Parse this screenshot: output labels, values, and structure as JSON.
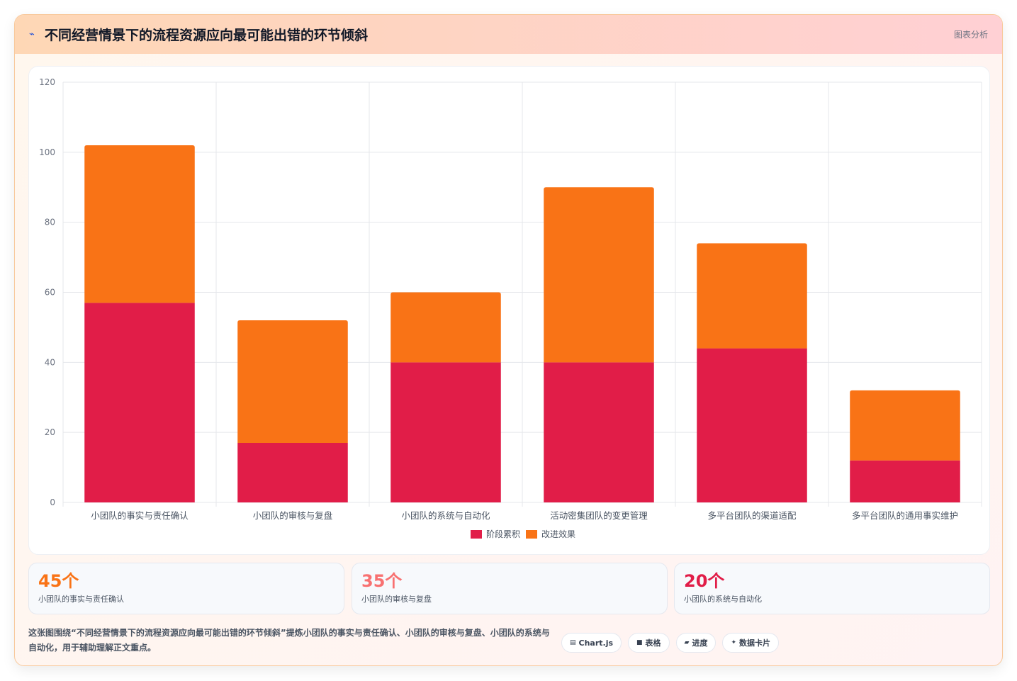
{
  "header": {
    "title": "不同经营情景下的流程资源应向最可能出错的环节倾斜",
    "tag": "图表分析"
  },
  "chart_data": {
    "type": "bar",
    "stacked": true,
    "categories": [
      "小团队的事实与责任确认",
      "小团队的审核与复盘",
      "小团队的系统与自动化",
      "活动密集团队的变更管理",
      "多平台团队的渠道适配",
      "多平台团队的通用事实维护"
    ],
    "series": [
      {
        "name": "阶段累积",
        "color": "#e11d48",
        "values": [
          57,
          17,
          40,
          40,
          44,
          12
        ]
      },
      {
        "name": "改进效果",
        "color": "#f97316",
        "values": [
          45,
          35,
          20,
          50,
          30,
          20
        ]
      }
    ],
    "ylim": [
      0,
      120
    ],
    "yticks": [
      0,
      20,
      40,
      60,
      80,
      100,
      120
    ],
    "grid": true,
    "legend": "bottom"
  },
  "stats": [
    {
      "value": "45个",
      "label": "小团队的事实与责任确认",
      "color": "#f97316"
    },
    {
      "value": "35个",
      "label": "小团队的审核与复盘",
      "color": "#f87171"
    },
    {
      "value": "20个",
      "label": "小团队的系统与自动化",
      "color": "#e11d48"
    }
  ],
  "footer": {
    "text": "这张图围绕“不同经营情景下的流程资源应向最可能出错的环节倾斜”提炼小团队的事实与责任确认、小团队的审核与复盘、小团队的系统与自动化，用于辅助理解正文重点。",
    "chips": [
      {
        "icon": "▤",
        "icon_name": "chart-icon",
        "label": "Chart.js"
      },
      {
        "icon": "■",
        "icon_name": "table-icon",
        "label": "表格"
      },
      {
        "icon": "▰",
        "icon_name": "progress-icon",
        "label": "进度"
      },
      {
        "icon": "✦",
        "icon_name": "sparkle-icon",
        "label": "数据卡片"
      }
    ]
  }
}
